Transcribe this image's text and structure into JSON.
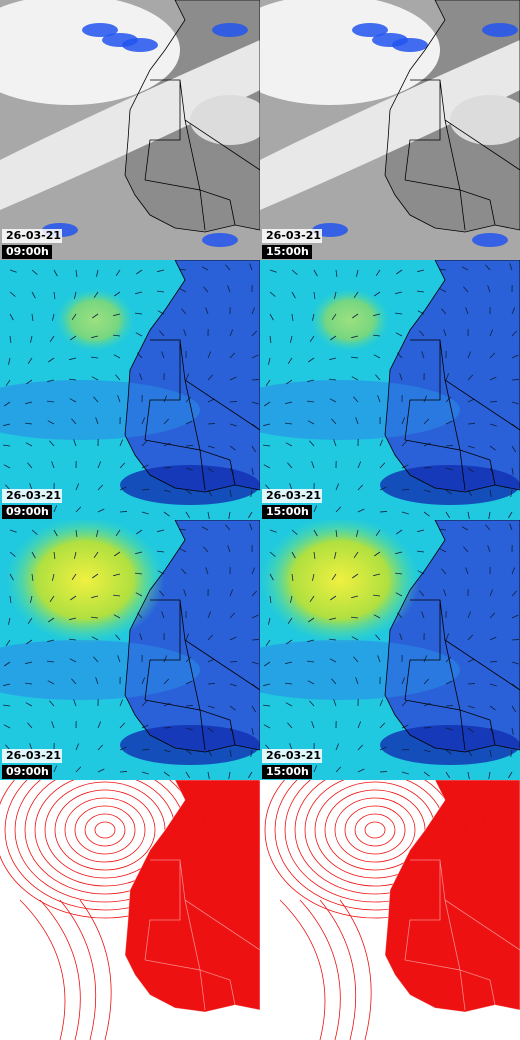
{
  "panels": [
    {
      "date": "26-03-21",
      "time": "09:00h"
    },
    {
      "date": "26-03-21",
      "time": "15:00h"
    },
    {
      "date": "26-03-21",
      "time": "09:00h"
    },
    {
      "date": "26-03-21",
      "time": "15:00h"
    },
    {
      "date": "26-03-21",
      "time": "09:00h"
    },
    {
      "date": "26-03-21",
      "time": "15:00h"
    }
  ]
}
